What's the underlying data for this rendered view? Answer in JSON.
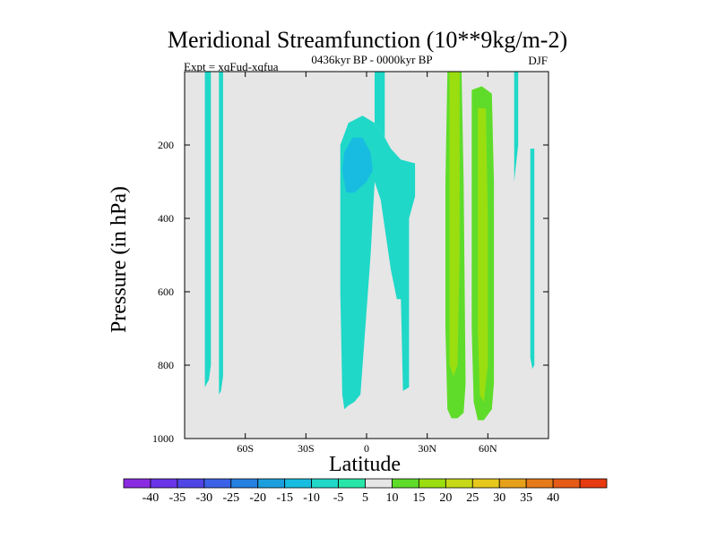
{
  "chart_data": {
    "type": "heatmap",
    "subtype": "filled-contour",
    "title": "Meridional Streamfunction (10**9kg/m-2)",
    "left_label": "Expt = xqFud-xqfua",
    "center_label": "0436kyr BP - 0000kyr BP",
    "right_label": "DJF",
    "xlabel": "Latitude",
    "ylabel": "Pressure (in hPa)",
    "xlim": [
      -90,
      90
    ],
    "ylim": [
      0,
      1000
    ],
    "y_inverted": true,
    "x_ticks": [
      {
        "value": -60,
        "label": "60S"
      },
      {
        "value": -30,
        "label": "30S"
      },
      {
        "value": 0,
        "label": "0"
      },
      {
        "value": 30,
        "label": "30N"
      },
      {
        "value": 60,
        "label": "60N"
      }
    ],
    "y_ticks": [
      {
        "value": 200,
        "label": "200"
      },
      {
        "value": 400,
        "label": "400"
      },
      {
        "value": 600,
        "label": "600"
      },
      {
        "value": 800,
        "label": "800"
      },
      {
        "value": 1000,
        "label": "1000"
      }
    ],
    "background_color": "#e6e6e6",
    "colorbar": {
      "levels": [
        -40,
        -35,
        -30,
        -25,
        -20,
        -15,
        -10,
        -5,
        5,
        10,
        15,
        20,
        25,
        30,
        35,
        40
      ],
      "colors": [
        "#8a2be2",
        "#6a35e8",
        "#4f45e6",
        "#3b62e6",
        "#2580e0",
        "#1c9fdc",
        "#18bce0",
        "#1fd8c8",
        "#28e6a8",
        "#e6e6e6",
        "#5fdc2a",
        "#9ade10",
        "#c7d818",
        "#e6c81a",
        "#e6a01a",
        "#e67a1a",
        "#e65a18",
        "#e63a10"
      ]
    },
    "regions": [
      {
        "name": "tall-narrow-negative",
        "level": -7,
        "points": [
          [
            -80,
            0
          ],
          [
            -77,
            0
          ],
          [
            -77,
            800
          ],
          [
            -78,
            840
          ],
          [
            -80,
            860
          ]
        ]
      },
      {
        "name": "narrow-negative-strip-b",
        "level": -7,
        "points": [
          [
            -73,
            0
          ],
          [
            -71,
            0
          ],
          [
            -71,
            830
          ],
          [
            -72,
            870
          ],
          [
            -73,
            880
          ]
        ]
      },
      {
        "name": "equatorial-negative-core",
        "level": -7,
        "points": [
          [
            -13,
            200
          ],
          [
            -9,
            140
          ],
          [
            -2,
            120
          ],
          [
            4,
            140
          ],
          [
            9,
            180
          ],
          [
            12,
            210
          ],
          [
            17,
            240
          ],
          [
            24,
            250
          ],
          [
            24,
            340
          ],
          [
            21,
            400
          ],
          [
            21,
            860
          ],
          [
            18,
            870
          ],
          [
            17,
            620
          ],
          [
            15,
            620
          ],
          [
            12,
            540
          ],
          [
            7,
            350
          ],
          [
            4,
            300
          ],
          [
            2,
            500
          ],
          [
            -3,
            880
          ],
          [
            -6,
            900
          ],
          [
            -9,
            910
          ],
          [
            -11,
            920
          ],
          [
            -12,
            880
          ],
          [
            -13,
            600
          ]
        ]
      },
      {
        "name": "equatorial-column",
        "level": -7,
        "points": [
          [
            4,
            0
          ],
          [
            9,
            0
          ],
          [
            9,
            180
          ],
          [
            4,
            140
          ]
        ]
      },
      {
        "name": "equatorial-core-deep",
        "level": -12,
        "points": [
          [
            -11,
            220
          ],
          [
            -7,
            180
          ],
          [
            -2,
            180
          ],
          [
            2,
            220
          ],
          [
            3,
            270
          ],
          [
            0,
            300
          ],
          [
            -6,
            330
          ],
          [
            -10,
            330
          ],
          [
            -12,
            270
          ]
        ]
      },
      {
        "name": "nh-right-positive",
        "level": 10,
        "points": [
          [
            40,
            0
          ],
          [
            47,
            0
          ],
          [
            48,
            300
          ],
          [
            49,
            850
          ],
          [
            48,
            930
          ],
          [
            45,
            945
          ],
          [
            42,
            945
          ],
          [
            40,
            920
          ],
          [
            39,
            700
          ],
          [
            39,
            300
          ]
        ]
      },
      {
        "name": "nh-right-positive-inner",
        "level": 15,
        "points": [
          [
            41,
            0
          ],
          [
            46,
            0
          ],
          [
            46,
            500
          ],
          [
            45,
            800
          ],
          [
            43,
            830
          ],
          [
            41,
            800
          ],
          [
            41,
            500
          ]
        ]
      },
      {
        "name": "nh-inner-positive",
        "level": 10,
        "points": [
          [
            52,
            50
          ],
          [
            57,
            40
          ],
          [
            62,
            60
          ],
          [
            63,
            300
          ],
          [
            63,
            850
          ],
          [
            62,
            920
          ],
          [
            58,
            950
          ],
          [
            55,
            950
          ],
          [
            53,
            900
          ],
          [
            52,
            700
          ]
        ]
      },
      {
        "name": "nh-inner-positive-core",
        "level": 15,
        "points": [
          [
            55,
            100
          ],
          [
            59,
            100
          ],
          [
            60,
            400
          ],
          [
            60,
            800
          ],
          [
            58,
            900
          ],
          [
            56,
            880
          ],
          [
            55,
            700
          ]
        ]
      },
      {
        "name": "nh-edge-negative",
        "level": -7,
        "points": [
          [
            73,
            0
          ],
          [
            75,
            0
          ],
          [
            75,
            200
          ],
          [
            73,
            300
          ]
        ]
      },
      {
        "name": "nh-far-negative",
        "level": -7,
        "points": [
          [
            81,
            210
          ],
          [
            83,
            210
          ],
          [
            83,
            800
          ],
          [
            82,
            810
          ],
          [
            81,
            780
          ]
        ]
      }
    ]
  }
}
